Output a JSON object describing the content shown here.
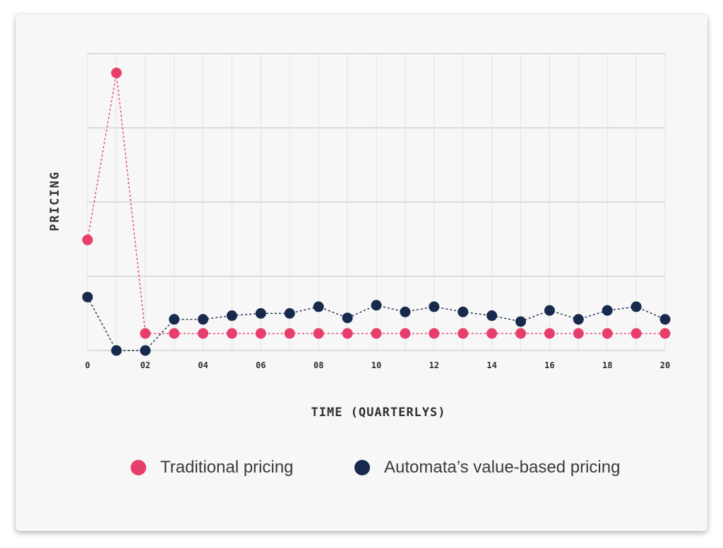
{
  "chart_data": {
    "type": "line",
    "title": "",
    "xlabel": "TIME (QUARTERLYS)",
    "ylabel": "PRICING",
    "x": [
      0,
      1,
      2,
      3,
      4,
      5,
      6,
      7,
      8,
      9,
      10,
      11,
      12,
      13,
      14,
      15,
      16,
      17,
      18,
      19,
      20
    ],
    "x_tick_labels": [
      "0",
      "02",
      "04",
      "06",
      "08",
      "10",
      "12",
      "14",
      "16",
      "18",
      "20"
    ],
    "x_tick_values": [
      0,
      2,
      4,
      6,
      8,
      10,
      12,
      14,
      16,
      18,
      20
    ],
    "xlim": [
      0,
      20
    ],
    "ylim": [
      0,
      4
    ],
    "y_tick_labels_shown": false,
    "grid": true,
    "legend_position": "bottom",
    "series": [
      {
        "name": "Traditional pricing",
        "color": "#e83e6c",
        "values": [
          1.49,
          3.74,
          0.23,
          0.23,
          0.23,
          0.23,
          0.23,
          0.23,
          0.23,
          0.23,
          0.23,
          0.23,
          0.23,
          0.23,
          0.23,
          0.23,
          0.23,
          0.23,
          0.23,
          0.23,
          0.23
        ]
      },
      {
        "name": "Automata’s value-based pricing",
        "color": "#172a4d",
        "values": [
          0.72,
          0.0,
          0.0,
          0.42,
          0.42,
          0.47,
          0.5,
          0.5,
          0.59,
          0.44,
          0.61,
          0.52,
          0.59,
          0.52,
          0.47,
          0.39,
          0.54,
          0.42,
          0.54,
          0.59,
          0.42
        ]
      }
    ]
  }
}
